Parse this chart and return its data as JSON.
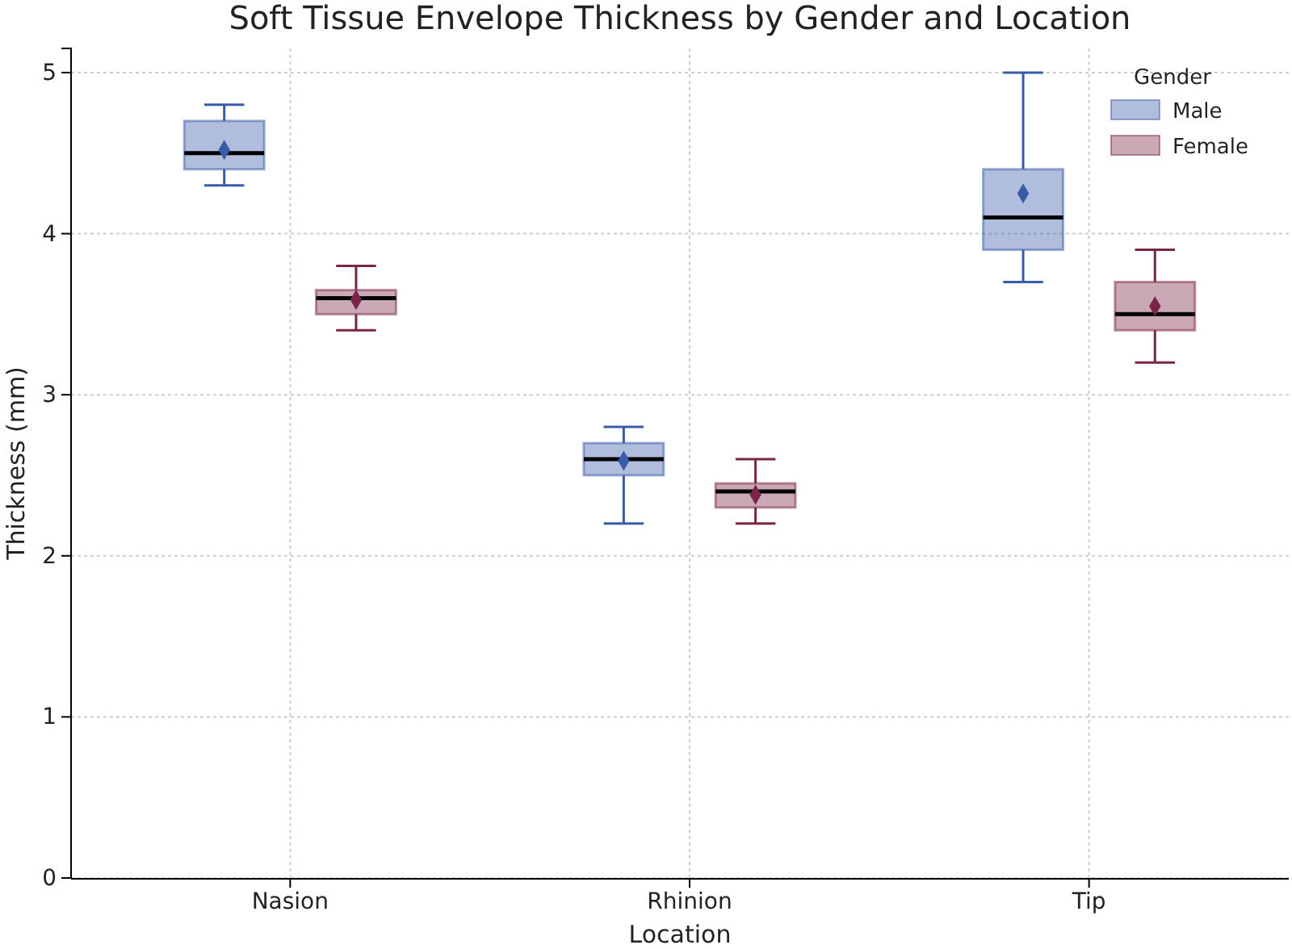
{
  "chart_data": {
    "type": "box",
    "title": "Soft Tissue Envelope Thickness by Gender and Location",
    "xlabel": "Location",
    "ylabel": "Thickness (mm)",
    "legend_title": "Gender",
    "categories": [
      "Nasion",
      "Rhinion",
      "Tip"
    ],
    "ylim": [
      0,
      5.15
    ],
    "yticks": [
      0,
      1,
      2,
      3,
      4,
      5
    ],
    "grid": true,
    "legend": "top right",
    "marker": "diamond",
    "series": [
      {
        "name": "Male",
        "color": "#3a5ba8",
        "boxes": [
          {
            "low": 4.3,
            "q1": 4.4,
            "median": 4.5,
            "q3": 4.7,
            "high": 4.8,
            "mean": 4.52
          },
          {
            "low": 2.2,
            "q1": 2.5,
            "median": 2.6,
            "q3": 2.7,
            "high": 2.8,
            "mean": 2.59
          },
          {
            "low": 3.7,
            "q1": 3.9,
            "median": 4.1,
            "q3": 4.4,
            "high": 5.0,
            "mean": 4.25
          }
        ]
      },
      {
        "name": "Female",
        "color": "#7a2546",
        "boxes": [
          {
            "low": 3.4,
            "q1": 3.5,
            "median": 3.6,
            "q3": 3.65,
            "high": 3.8,
            "mean": 3.59
          },
          {
            "low": 2.2,
            "q1": 2.3,
            "median": 2.4,
            "q3": 2.45,
            "high": 2.6,
            "mean": 2.38
          },
          {
            "low": 3.2,
            "q1": 3.4,
            "median": 3.5,
            "q3": 3.7,
            "high": 3.9,
            "mean": 3.55
          }
        ]
      }
    ]
  }
}
